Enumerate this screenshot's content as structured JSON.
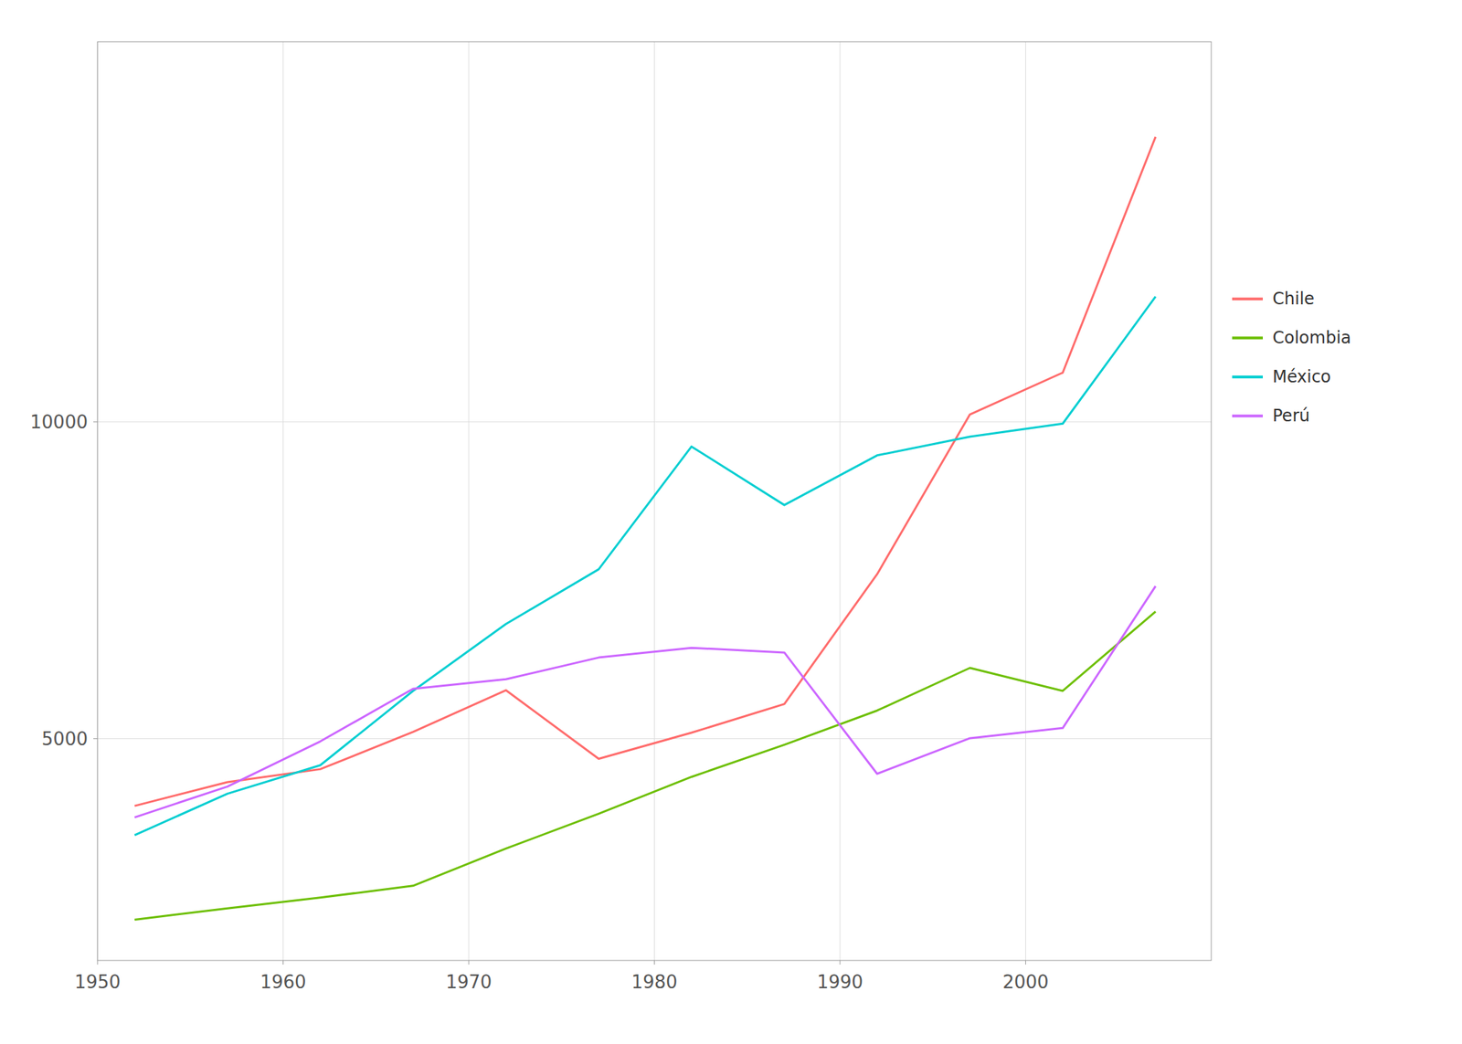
{
  "chart_data": {
    "type": "line",
    "x": [
      1952,
      1957,
      1962,
      1967,
      1972,
      1977,
      1982,
      1987,
      1992,
      1997,
      2002,
      2007
    ],
    "series": [
      {
        "name": "Chile",
        "color": "#FF6B6B",
        "values": [
          3939,
          4315,
          4519,
          5106,
          5765,
          4682,
          5095,
          5547,
          7596,
          10118,
          10778,
          14500
        ]
      },
      {
        "name": "Colombia",
        "color": "#6DBF00",
        "values": [
          2144,
          2323,
          2492,
          2678,
          3265,
          3816,
          4397,
          4903,
          5444,
          6117,
          5755,
          7006
        ]
      },
      {
        "name": "México",
        "color": "#00CED1",
        "values": [
          3478,
          4131,
          4581,
          5754,
          6809,
          7674,
          9611,
          8688,
          9472,
          9767,
          9973,
          11977
        ]
      },
      {
        "name": "Perú",
        "color": "#CC66FF",
        "values": [
          3758,
          4245,
          4957,
          5788,
          5938,
          6281,
          6434,
          6360,
          4446,
          5008,
          5168,
          7408
        ]
      }
    ],
    "xlim": [
      1950,
      2010
    ],
    "ylim": [
      1500,
      16000
    ],
    "xticks": [
      1950,
      1960,
      1970,
      1980,
      1990,
      2000
    ],
    "yticks": [
      5000,
      10000
    ],
    "grid": true,
    "legend": "right"
  }
}
